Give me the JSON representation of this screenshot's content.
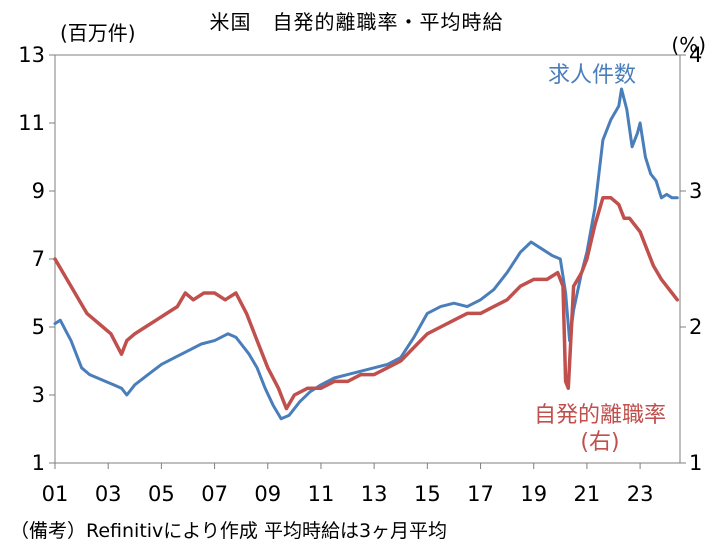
{
  "chart_data": {
    "type": "line",
    "title": "米国　自発的離職率・平均時給",
    "left_unit": "(百万件)",
    "right_unit": "(%)",
    "y_left": {
      "lim": [
        1,
        13
      ],
      "ticks": [
        "1",
        "3",
        "5",
        "7",
        "9",
        "11",
        "13"
      ]
    },
    "y_right": {
      "lim": [
        1,
        4
      ],
      "ticks": [
        "1",
        "2",
        "3",
        "4"
      ]
    },
    "x_ticks": [
      "01",
      "03",
      "05",
      "07",
      "09",
      "11",
      "13",
      "15",
      "17",
      "19",
      "21",
      "23"
    ],
    "x_range": [
      2001.0,
      2024.5
    ],
    "series": [
      {
        "name": "求人件数",
        "axis": "left",
        "color": "#4A7EBB",
        "points": [
          [
            2001.0,
            5.1
          ],
          [
            2001.2,
            5.2
          ],
          [
            2001.4,
            4.9
          ],
          [
            2001.6,
            4.6
          ],
          [
            2001.8,
            4.2
          ],
          [
            2002.0,
            3.8
          ],
          [
            2002.3,
            3.6
          ],
          [
            2002.6,
            3.5
          ],
          [
            2002.9,
            3.4
          ],
          [
            2003.2,
            3.3
          ],
          [
            2003.5,
            3.2
          ],
          [
            2003.7,
            3.0
          ],
          [
            2004.0,
            3.3
          ],
          [
            2004.5,
            3.6
          ],
          [
            2005.0,
            3.9
          ],
          [
            2005.5,
            4.1
          ],
          [
            2006.0,
            4.3
          ],
          [
            2006.5,
            4.5
          ],
          [
            2007.0,
            4.6
          ],
          [
            2007.5,
            4.8
          ],
          [
            2007.8,
            4.7
          ],
          [
            2008.0,
            4.5
          ],
          [
            2008.3,
            4.2
          ],
          [
            2008.6,
            3.8
          ],
          [
            2008.9,
            3.2
          ],
          [
            2009.2,
            2.7
          ],
          [
            2009.5,
            2.3
          ],
          [
            2009.8,
            2.4
          ],
          [
            2010.2,
            2.8
          ],
          [
            2010.6,
            3.1
          ],
          [
            2011.0,
            3.3
          ],
          [
            2011.5,
            3.5
          ],
          [
            2012.0,
            3.6
          ],
          [
            2012.5,
            3.7
          ],
          [
            2013.0,
            3.8
          ],
          [
            2013.5,
            3.9
          ],
          [
            2014.0,
            4.1
          ],
          [
            2014.5,
            4.7
          ],
          [
            2015.0,
            5.4
          ],
          [
            2015.5,
            5.6
          ],
          [
            2016.0,
            5.7
          ],
          [
            2016.5,
            5.6
          ],
          [
            2017.0,
            5.8
          ],
          [
            2017.5,
            6.1
          ],
          [
            2018.0,
            6.6
          ],
          [
            2018.5,
            7.2
          ],
          [
            2018.9,
            7.5
          ],
          [
            2019.3,
            7.3
          ],
          [
            2019.7,
            7.1
          ],
          [
            2020.0,
            7.0
          ],
          [
            2020.2,
            6.0
          ],
          [
            2020.35,
            4.6
          ],
          [
            2020.5,
            5.5
          ],
          [
            2020.8,
            6.6
          ],
          [
            2021.0,
            7.2
          ],
          [
            2021.3,
            8.5
          ],
          [
            2021.6,
            10.5
          ],
          [
            2021.9,
            11.1
          ],
          [
            2022.2,
            11.5
          ],
          [
            2022.3,
            12.0
          ],
          [
            2022.5,
            11.4
          ],
          [
            2022.7,
            10.3
          ],
          [
            2022.9,
            10.7
          ],
          [
            2023.0,
            11.0
          ],
          [
            2023.2,
            10.0
          ],
          [
            2023.4,
            9.5
          ],
          [
            2023.6,
            9.3
          ],
          [
            2023.8,
            8.8
          ],
          [
            2024.0,
            8.9
          ],
          [
            2024.2,
            8.8
          ],
          [
            2024.4,
            8.8
          ]
        ]
      },
      {
        "name": "自発的離職率",
        "sub_label": "(右)",
        "axis": "right",
        "color": "#C0504D",
        "points": [
          [
            2001.0,
            2.5
          ],
          [
            2001.3,
            2.4
          ],
          [
            2001.6,
            2.3
          ],
          [
            2001.9,
            2.2
          ],
          [
            2002.2,
            2.1
          ],
          [
            2002.5,
            2.05
          ],
          [
            2002.8,
            2.0
          ],
          [
            2003.1,
            1.95
          ],
          [
            2003.5,
            1.8
          ],
          [
            2003.7,
            1.9
          ],
          [
            2004.0,
            1.95
          ],
          [
            2004.4,
            2.0
          ],
          [
            2004.8,
            2.05
          ],
          [
            2005.2,
            2.1
          ],
          [
            2005.6,
            2.15
          ],
          [
            2005.9,
            2.25
          ],
          [
            2006.2,
            2.2
          ],
          [
            2006.6,
            2.25
          ],
          [
            2007.0,
            2.25
          ],
          [
            2007.4,
            2.2
          ],
          [
            2007.8,
            2.25
          ],
          [
            2008.2,
            2.1
          ],
          [
            2008.6,
            1.9
          ],
          [
            2009.0,
            1.7
          ],
          [
            2009.4,
            1.55
          ],
          [
            2009.7,
            1.4
          ],
          [
            2010.0,
            1.5
          ],
          [
            2010.5,
            1.55
          ],
          [
            2011.0,
            1.55
          ],
          [
            2011.5,
            1.6
          ],
          [
            2012.0,
            1.6
          ],
          [
            2012.5,
            1.65
          ],
          [
            2013.0,
            1.65
          ],
          [
            2013.5,
            1.7
          ],
          [
            2014.0,
            1.75
          ],
          [
            2014.5,
            1.85
          ],
          [
            2015.0,
            1.95
          ],
          [
            2015.5,
            2.0
          ],
          [
            2016.0,
            2.05
          ],
          [
            2016.5,
            2.1
          ],
          [
            2017.0,
            2.1
          ],
          [
            2017.5,
            2.15
          ],
          [
            2018.0,
            2.2
          ],
          [
            2018.5,
            2.3
          ],
          [
            2019.0,
            2.35
          ],
          [
            2019.5,
            2.35
          ],
          [
            2019.9,
            2.4
          ],
          [
            2020.1,
            2.3
          ],
          [
            2020.2,
            1.6
          ],
          [
            2020.3,
            1.55
          ],
          [
            2020.5,
            2.3
          ],
          [
            2020.8,
            2.4
          ],
          [
            2021.0,
            2.5
          ],
          [
            2021.3,
            2.75
          ],
          [
            2021.6,
            2.95
          ],
          [
            2021.9,
            2.95
          ],
          [
            2022.2,
            2.9
          ],
          [
            2022.4,
            2.8
          ],
          [
            2022.6,
            2.8
          ],
          [
            2022.8,
            2.75
          ],
          [
            2023.0,
            2.7
          ],
          [
            2023.2,
            2.6
          ],
          [
            2023.5,
            2.45
          ],
          [
            2023.8,
            2.35
          ],
          [
            2024.0,
            2.3
          ],
          [
            2024.2,
            2.25
          ],
          [
            2024.4,
            2.2
          ]
        ]
      }
    ],
    "labels": {
      "openings": "求人件数",
      "quits": "自発的離職率",
      "quits_sub": "(右)"
    },
    "grid": false
  },
  "note": "（備考）Refinitivにより作成 平均時給は3ヶ月平均"
}
